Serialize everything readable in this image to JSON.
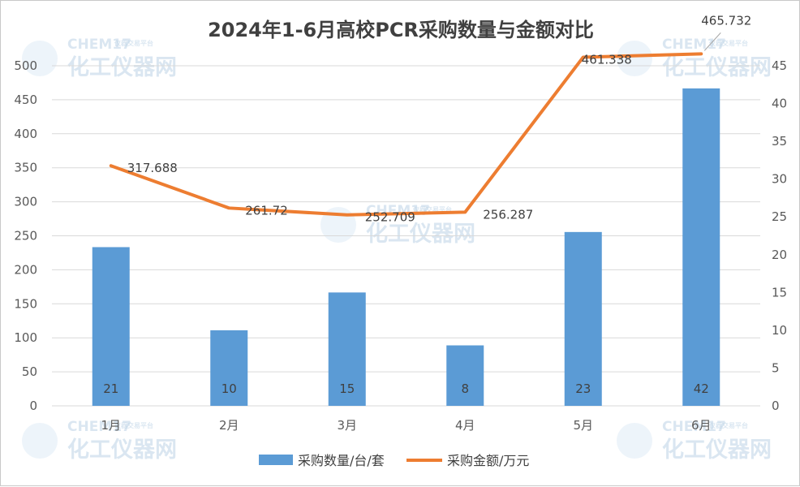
{
  "chart_data": {
    "type": "bar",
    "title": "2024年1-6月高校PCR采购数量与金额对比",
    "categories": [
      "1月",
      "2月",
      "3月",
      "4月",
      "5月",
      "6月"
    ],
    "series": [
      {
        "name": "采购数量/台/套",
        "type": "bar",
        "axis": "left",
        "values": [
          21,
          10,
          15,
          8,
          23,
          42
        ],
        "color": "#5b9bd5"
      },
      {
        "name": "采购金额/万元",
        "type": "line",
        "axis": "right",
        "values": [
          317.688,
          261.72,
          252.709,
          256.287,
          461.338,
          465.732
        ],
        "color": "#ed7d31"
      }
    ],
    "y_left": {
      "min": 0,
      "max": 500,
      "step": 50
    },
    "y_right": {
      "min": 0,
      "max": 45,
      "step": 5
    },
    "grid": true,
    "legend": "bottom"
  },
  "watermark": {
    "brand": "CHEM17",
    "sub": "化工仪器网",
    "tag": "仪器交易平台"
  }
}
